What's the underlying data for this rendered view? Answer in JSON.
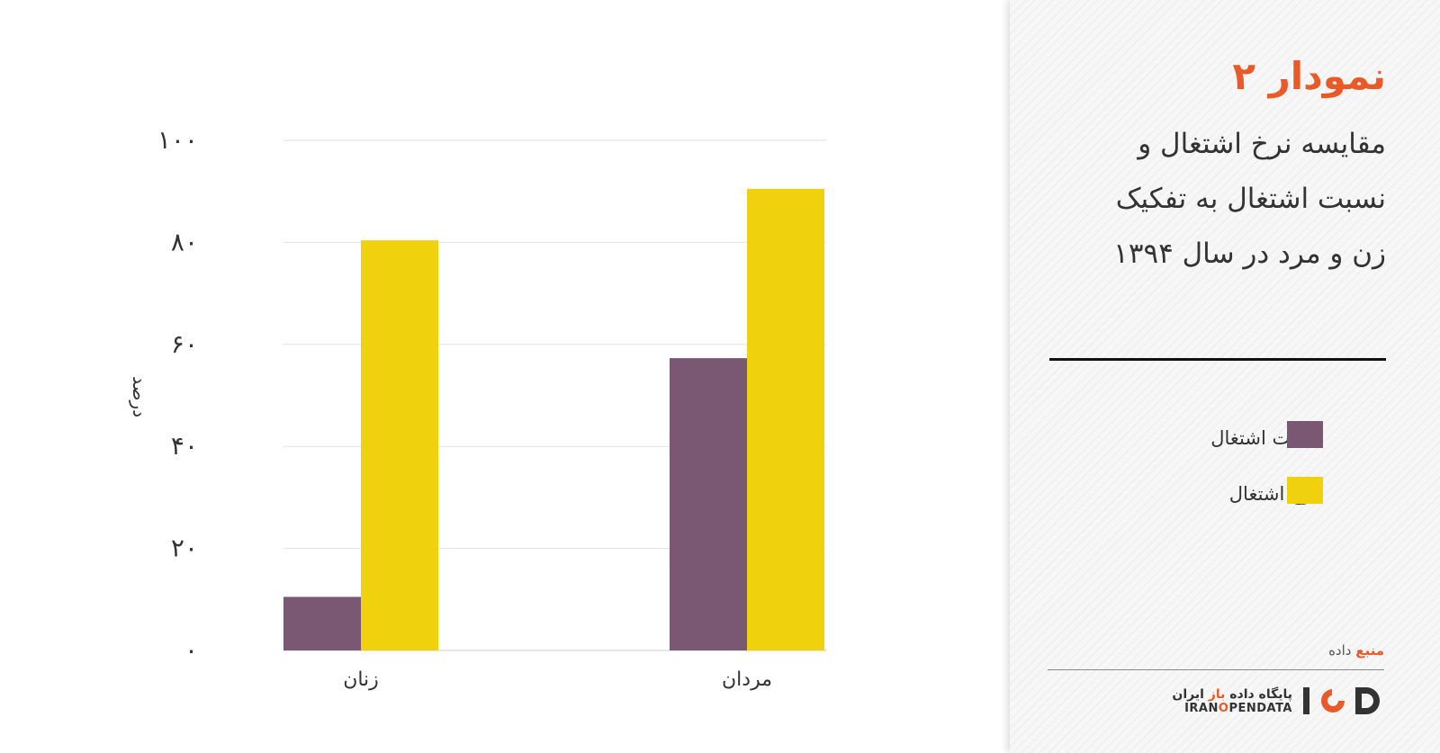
{
  "colors": {
    "accent": "#ea5a28",
    "employment_ratio": "#7a5773",
    "employment_rate": "#f0d10e"
  },
  "chart_data": {
    "type": "bar",
    "categories": [
      "زنان",
      "مردان"
    ],
    "series": [
      {
        "name": "نسبت اشتغال",
        "values": [
          10.5,
          57.3
        ],
        "color": "#7a5773"
      },
      {
        "name": "نرخ اشتغال",
        "values": [
          80.4,
          90.5
        ],
        "color": "#f0d10e"
      }
    ],
    "yticks": [
      "۰",
      "۲۰",
      "۴۰",
      "۶۰",
      "۸۰",
      "۱۰۰"
    ],
    "ylabel": "درصد",
    "ylim": [
      0,
      100
    ],
    "grid": true,
    "legend_position": "right-panel"
  },
  "panel": {
    "title": "نمودار ۲",
    "subtitle": "مقایسه نرخ اشتغال و نسبت اشتغال به تفکیک زن و مرد در سال ۱۳۹۴",
    "legend": [
      {
        "label": "نسبت اشتغال",
        "color": "#7a5773"
      },
      {
        "label": "نرخ اشتغال",
        "color": "#f0d10e"
      }
    ],
    "source_prefix": "منبع",
    "source_suffix": " داده",
    "logo": {
      "fa_prefix": "پایگاه داده ",
      "fa_accent": "باز",
      "fa_suffix": " ایران",
      "en_prefix": "IRAN",
      "en_accent": "O",
      "en_suffix": "PENDATA",
      "mark": "IOD"
    }
  }
}
